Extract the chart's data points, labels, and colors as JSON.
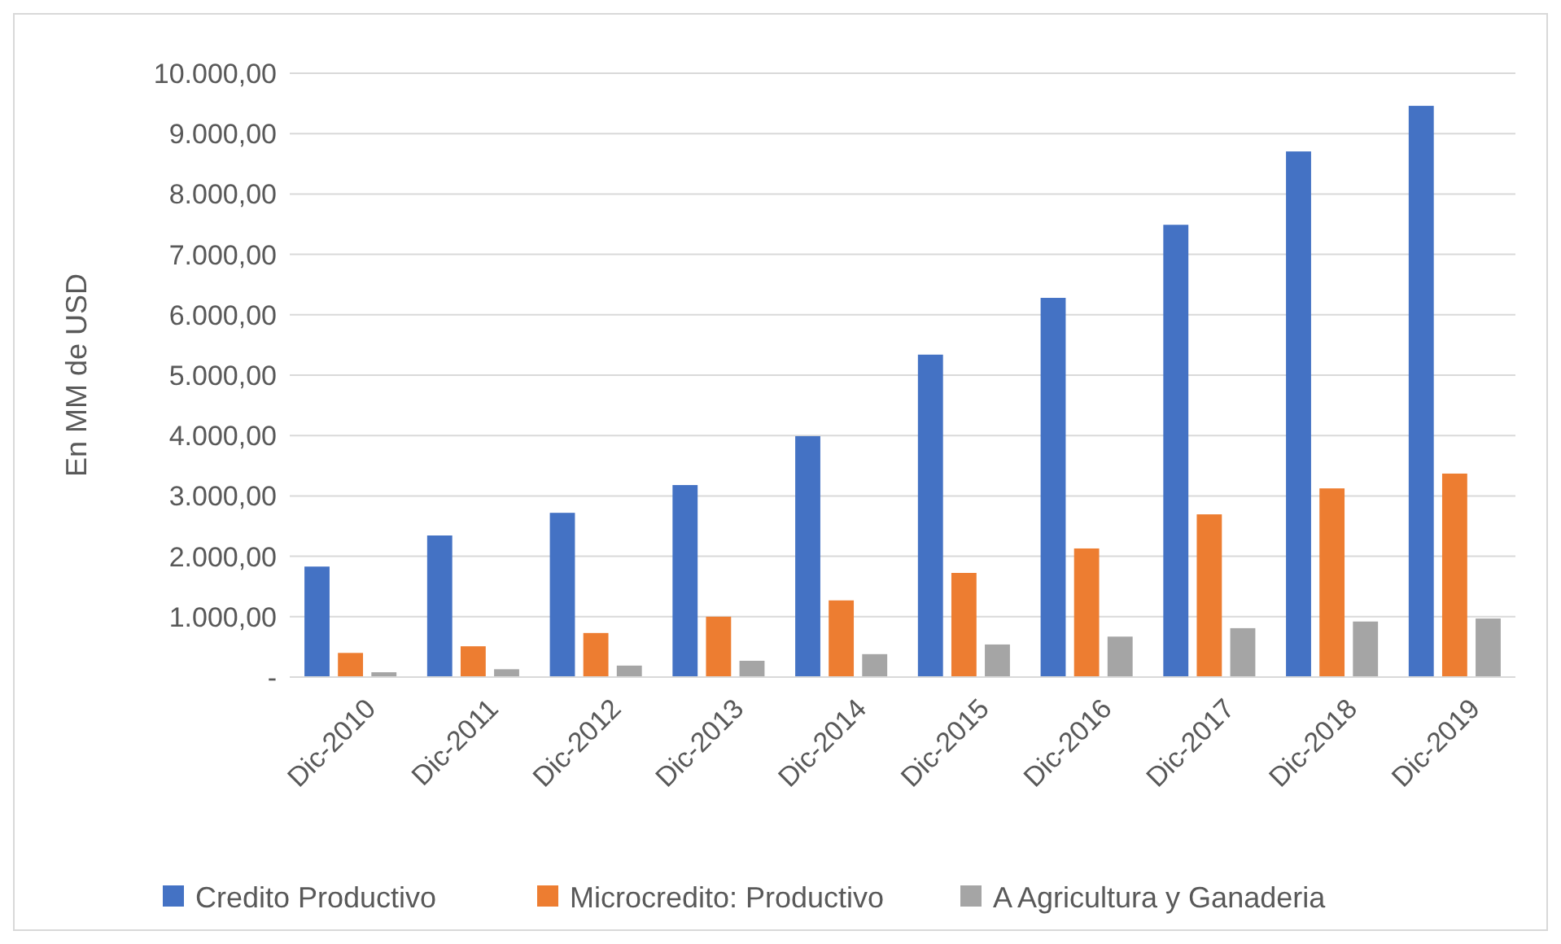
{
  "chart_data": {
    "type": "bar",
    "ylabel": "En MM de USD",
    "categories": [
      "Dic-2010",
      "Dic-2011",
      "Dic-2012",
      "Dic-2013",
      "Dic-2014",
      "Dic-2015",
      "Dic-2016",
      "Dic-2017",
      "Dic-2018",
      "Dic-2019"
    ],
    "series": [
      {
        "name": "Credito Productivo",
        "color": "#4472c4",
        "values": [
          1830,
          2345,
          2720,
          3180,
          3990,
          5340,
          6280,
          7490,
          8705,
          9460
        ]
      },
      {
        "name": "Microcredito: Productivo",
        "color": "#ed7d31",
        "values": [
          400,
          510,
          730,
          1000,
          1270,
          1725,
          2130,
          2695,
          3125,
          3370
        ]
      },
      {
        "name": "A Agricultura y Ganaderia",
        "color": "#a5a5a5",
        "values": [
          80,
          130,
          190,
          270,
          380,
          540,
          670,
          810,
          920,
          970
        ]
      }
    ],
    "ylim": [
      0,
      10000
    ],
    "yticks": [
      {
        "value": 0,
        "label": "-"
      },
      {
        "value": 1000,
        "label": "1.000,00"
      },
      {
        "value": 2000,
        "label": "2.000,00"
      },
      {
        "value": 3000,
        "label": "3.000,00"
      },
      {
        "value": 4000,
        "label": "4.000,00"
      },
      {
        "value": 5000,
        "label": "5.000,00"
      },
      {
        "value": 6000,
        "label": "6.000,00"
      },
      {
        "value": 7000,
        "label": "7.000,00"
      },
      {
        "value": 8000,
        "label": "8.000,00"
      },
      {
        "value": 9000,
        "label": "9.000,00"
      },
      {
        "value": 10000,
        "label": "10.000,00"
      }
    ],
    "grid": "y",
    "legend": "bottom"
  }
}
